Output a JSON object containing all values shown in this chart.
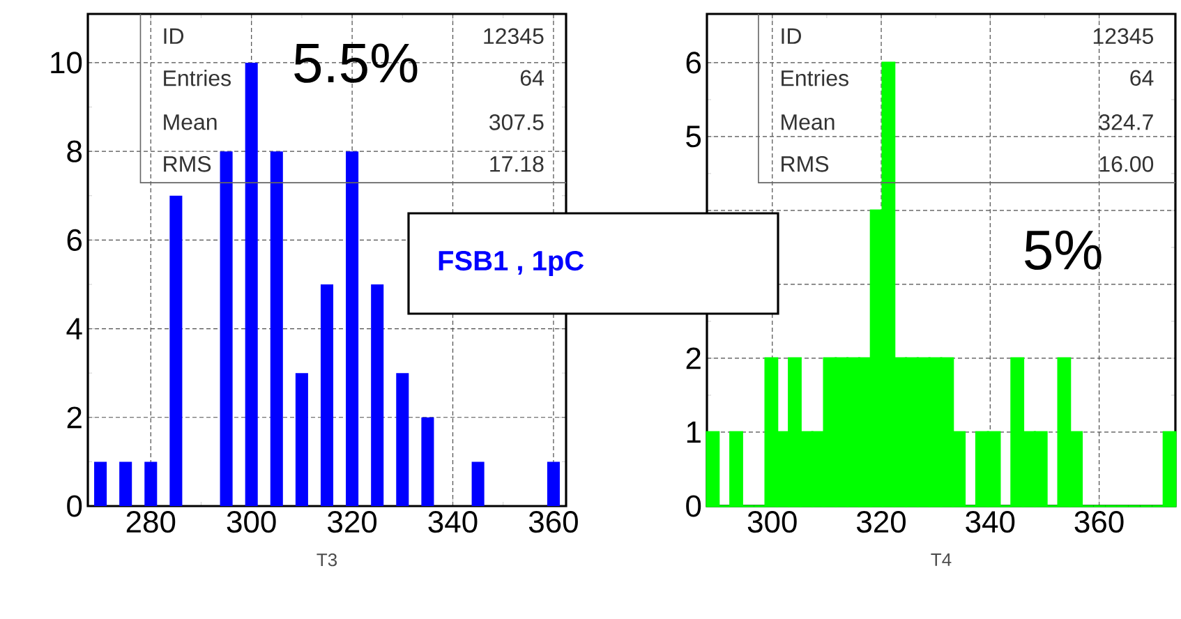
{
  "chart_data": [
    {
      "type": "histogram",
      "color": "#0000ff",
      "xlabel": "T3",
      "bins": [
        267.5,
        272.5,
        277.5,
        282.5,
        287.5,
        292.5,
        297.5,
        302.5,
        307.5,
        312.5,
        317.5,
        322.5,
        327.5,
        332.5,
        337.5,
        342.5,
        347.5,
        352.5,
        357.5,
        362.5
      ],
      "values": [
        1,
        1,
        1,
        7,
        0,
        8,
        10,
        8,
        3,
        5,
        8,
        5,
        3,
        2,
        0,
        1,
        0,
        0,
        1
      ],
      "xlim": [
        267.5,
        362.5
      ],
      "ylim": [
        0,
        11.1
      ],
      "xticks": [
        280,
        300,
        320,
        340,
        360
      ],
      "yticks": [
        0,
        2,
        4,
        6,
        8,
        10
      ],
      "grid": true,
      "annotations": [
        "ID",
        "12345",
        "Entries",
        "64",
        "Mean",
        "307.5",
        "RMS",
        "17.18",
        "5.5%",
        "FSB1 , 1pC"
      ]
    },
    {
      "type": "histogram",
      "color": "#00ff00",
      "xlabel": "T4",
      "bins": [
        288,
        290.15,
        292.3,
        294.45,
        296.6,
        298.75,
        300.9,
        303.05,
        305.2,
        307.35,
        309.5,
        311.65,
        313.8,
        315.95,
        318.1,
        320.25,
        322.4,
        324.55,
        326.7,
        328.85,
        331,
        333.15,
        335.3,
        337.45,
        339.6,
        341.75,
        343.9,
        346.05,
        348.2,
        350.35,
        352.5,
        354.65,
        356.8,
        358.95,
        361.1,
        363.25,
        365.4,
        367.55,
        369.7,
        371.85,
        374
      ],
      "values": [
        1,
        0,
        1,
        0,
        0,
        2,
        1,
        2,
        1,
        1,
        2,
        2,
        2,
        2,
        4,
        6,
        2,
        2,
        2,
        2,
        2,
        1,
        0,
        1,
        1,
        0,
        2,
        1,
        1,
        0,
        2,
        1,
        0,
        0,
        0,
        0,
        0,
        0,
        0,
        1
      ],
      "xlim": [
        288,
        374
      ],
      "ylim": [
        0,
        6.66
      ],
      "xticks": [
        300,
        320,
        340,
        360
      ],
      "yticks": [
        0,
        1,
        2,
        {
          "value": 3,
          "label": null
        },
        {
          "value": 4,
          "label": null
        },
        5,
        6
      ],
      "grid": true,
      "annotations": [
        "ID",
        "12345",
        "Entries",
        "64",
        "Mean",
        "324.7",
        "RMS",
        "16.00",
        "5%"
      ]
    }
  ]
}
